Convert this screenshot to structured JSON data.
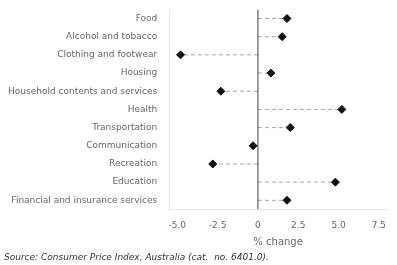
{
  "chart_data": {
    "type": "dot",
    "orientation": "horizontal",
    "categories": [
      "Food",
      "Alcohol and tobacco",
      "Clothing and footwear",
      "Housing",
      "Household contents and services",
      "Health",
      "Transportation",
      "Communication",
      "Recreation",
      "Education",
      "Financial and insurance services"
    ],
    "values": [
      1.8,
      1.5,
      -4.8,
      0.8,
      -2.3,
      5.2,
      2.0,
      -0.3,
      -2.8,
      4.8,
      1.8
    ],
    "xlabel": "% change",
    "xlim": [
      -5.5,
      8.0
    ],
    "xticks": [
      {
        "value": -5.0,
        "label": "-5.0"
      },
      -2.5,
      0,
      2.5,
      {
        "value": 5.0,
        "label": "5.0"
      },
      7.5
    ],
    "color": "#111111",
    "marker": "diamond",
    "line_style": "dashed",
    "grid": false,
    "annotation": "Source: Consumer Price Index, Australia (cat.  no. 6401.0)."
  }
}
